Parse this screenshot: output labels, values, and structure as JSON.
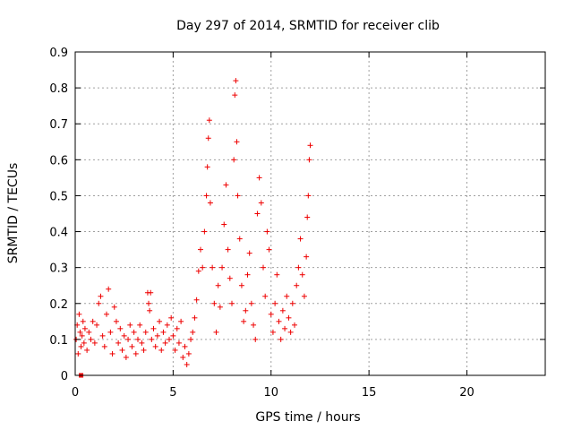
{
  "chart_data": {
    "type": "scatter",
    "title": "Day 297 of 2014, SRMTID for receiver clib",
    "xlabel": "GPS time / hours",
    "ylabel": "SRMTID / TECUs",
    "xlim": [
      0,
      24
    ],
    "ylim": [
      0,
      0.9
    ],
    "x_ticks": [
      0,
      5,
      10,
      15,
      20
    ],
    "y_ticks": [
      0,
      0.1,
      0.2,
      0.3,
      0.4,
      0.5,
      0.6,
      0.7,
      0.8,
      0.9
    ],
    "x_tick_labels": [
      "0",
      "5",
      "10",
      "15",
      "20"
    ],
    "y_tick_labels": [
      "0",
      "0.1",
      "0.2",
      "0.3",
      "0.4",
      "0.5",
      "0.6",
      "0.7",
      "0.8",
      "0.9"
    ],
    "grid": true,
    "marker": "+",
    "color": "#ee0000",
    "special_points": [
      {
        "x": 0.3,
        "y": 0.0,
        "marker": "square"
      }
    ],
    "series": [
      {
        "name": "SRMTID",
        "points": [
          [
            0.05,
            0.1
          ],
          [
            0.1,
            0.14
          ],
          [
            0.15,
            0.06
          ],
          [
            0.2,
            0.17
          ],
          [
            0.25,
            0.12
          ],
          [
            0.3,
            0.08
          ],
          [
            0.35,
            0.11
          ],
          [
            0.4,
            0.15
          ],
          [
            0.45,
            0.09
          ],
          [
            0.5,
            0.13
          ],
          [
            0.6,
            0.07
          ],
          [
            0.7,
            0.12
          ],
          [
            0.8,
            0.1
          ],
          [
            0.9,
            0.15
          ],
          [
            1.0,
            0.09
          ],
          [
            1.1,
            0.14
          ],
          [
            1.2,
            0.2
          ],
          [
            1.3,
            0.22
          ],
          [
            1.4,
            0.11
          ],
          [
            1.5,
            0.08
          ],
          [
            1.6,
            0.17
          ],
          [
            1.7,
            0.24
          ],
          [
            1.8,
            0.12
          ],
          [
            1.9,
            0.06
          ],
          [
            2.0,
            0.19
          ],
          [
            2.1,
            0.15
          ],
          [
            2.2,
            0.09
          ],
          [
            2.3,
            0.13
          ],
          [
            2.4,
            0.07
          ],
          [
            2.5,
            0.11
          ],
          [
            2.6,
            0.05
          ],
          [
            2.7,
            0.1
          ],
          [
            2.8,
            0.14
          ],
          [
            2.9,
            0.08
          ],
          [
            3.0,
            0.12
          ],
          [
            3.1,
            0.06
          ],
          [
            3.2,
            0.1
          ],
          [
            3.3,
            0.14
          ],
          [
            3.4,
            0.09
          ],
          [
            3.5,
            0.07
          ],
          [
            3.6,
            0.12
          ],
          [
            3.7,
            0.23
          ],
          [
            3.75,
            0.2
          ],
          [
            3.8,
            0.18
          ],
          [
            3.85,
            0.23
          ],
          [
            3.9,
            0.1
          ],
          [
            4.0,
            0.13
          ],
          [
            4.1,
            0.08
          ],
          [
            4.2,
            0.11
          ],
          [
            4.3,
            0.15
          ],
          [
            4.4,
            0.07
          ],
          [
            4.5,
            0.12
          ],
          [
            4.6,
            0.09
          ],
          [
            4.7,
            0.14
          ],
          [
            4.8,
            0.1
          ],
          [
            4.9,
            0.16
          ],
          [
            5.0,
            0.11
          ],
          [
            5.1,
            0.07
          ],
          [
            5.2,
            0.13
          ],
          [
            5.3,
            0.09
          ],
          [
            5.4,
            0.15
          ],
          [
            5.5,
            0.05
          ],
          [
            5.6,
            0.08
          ],
          [
            5.7,
            0.03
          ],
          [
            5.8,
            0.06
          ],
          [
            5.9,
            0.1
          ],
          [
            6.0,
            0.12
          ],
          [
            6.1,
            0.16
          ],
          [
            6.2,
            0.21
          ],
          [
            6.3,
            0.29
          ],
          [
            6.4,
            0.35
          ],
          [
            6.5,
            0.3
          ],
          [
            6.6,
            0.4
          ],
          [
            6.7,
            0.5
          ],
          [
            6.75,
            0.58
          ],
          [
            6.8,
            0.66
          ],
          [
            6.85,
            0.71
          ],
          [
            6.9,
            0.48
          ],
          [
            7.0,
            0.3
          ],
          [
            7.1,
            0.2
          ],
          [
            7.2,
            0.12
          ],
          [
            7.3,
            0.25
          ],
          [
            7.4,
            0.19
          ],
          [
            7.5,
            0.3
          ],
          [
            7.6,
            0.42
          ],
          [
            7.7,
            0.53
          ],
          [
            7.8,
            0.35
          ],
          [
            7.9,
            0.27
          ],
          [
            8.0,
            0.2
          ],
          [
            8.1,
            0.6
          ],
          [
            8.15,
            0.78
          ],
          [
            8.2,
            0.82
          ],
          [
            8.25,
            0.65
          ],
          [
            8.3,
            0.5
          ],
          [
            8.4,
            0.38
          ],
          [
            8.5,
            0.25
          ],
          [
            8.6,
            0.15
          ],
          [
            8.7,
            0.18
          ],
          [
            8.8,
            0.28
          ],
          [
            8.9,
            0.34
          ],
          [
            9.0,
            0.2
          ],
          [
            9.1,
            0.14
          ],
          [
            9.2,
            0.1
          ],
          [
            9.3,
            0.45
          ],
          [
            9.4,
            0.55
          ],
          [
            9.5,
            0.48
          ],
          [
            9.6,
            0.3
          ],
          [
            9.7,
            0.22
          ],
          [
            9.8,
            0.4
          ],
          [
            9.9,
            0.35
          ],
          [
            10.0,
            0.17
          ],
          [
            10.1,
            0.12
          ],
          [
            10.2,
            0.2
          ],
          [
            10.3,
            0.28
          ],
          [
            10.4,
            0.15
          ],
          [
            10.5,
            0.1
          ],
          [
            10.6,
            0.18
          ],
          [
            10.7,
            0.13
          ],
          [
            10.8,
            0.22
          ],
          [
            10.9,
            0.16
          ],
          [
            11.0,
            0.12
          ],
          [
            11.1,
            0.2
          ],
          [
            11.2,
            0.14
          ],
          [
            11.3,
            0.25
          ],
          [
            11.4,
            0.3
          ],
          [
            11.5,
            0.38
          ],
          [
            11.6,
            0.28
          ],
          [
            11.7,
            0.22
          ],
          [
            11.8,
            0.33
          ],
          [
            11.85,
            0.44
          ],
          [
            11.9,
            0.5
          ],
          [
            11.95,
            0.6
          ],
          [
            12.0,
            0.64
          ]
        ]
      }
    ]
  }
}
